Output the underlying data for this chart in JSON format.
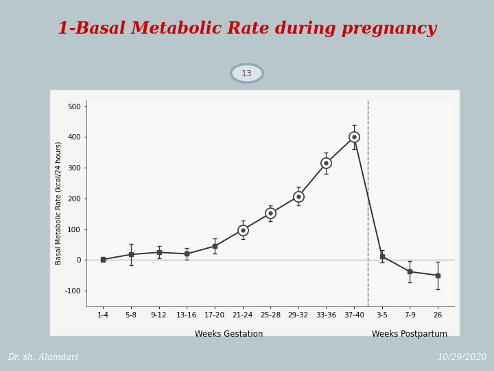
{
  "title": "1-Basal Metabolic Rate during pregnancy",
  "title_color": "#cc0000",
  "slide_bg": "#b8c7cc",
  "inner_bg": "#c8d4d8",
  "white_box_bg": "#f0f0f0",
  "footer_bg": "#7a9ea8",
  "footer_left": "Dr. sh. Alamdari",
  "footer_right": "10/29/2020",
  "page_number": "13",
  "ylabel": "Basal Metabolic Rate (kcal/24 hours)",
  "xlabel_gestation": "Weeks Gestation",
  "xlabel_postpartum": "Weeks Postpartum",
  "x_labels": [
    "1-4",
    "5-8",
    "9-12",
    "13-16",
    "17-20",
    "21-24",
    "25-28",
    "29-32",
    "33-36",
    "37-40",
    "3-5",
    "7-9",
    "26"
  ],
  "x_values": [
    0,
    1,
    2,
    3,
    4,
    5,
    6,
    7,
    8,
    9,
    10,
    11,
    12
  ],
  "y_values": [
    2,
    18,
    25,
    20,
    45,
    98,
    152,
    207,
    315,
    400,
    12,
    -38,
    -50
  ],
  "y_err": [
    8,
    35,
    20,
    18,
    25,
    30,
    25,
    30,
    35,
    40,
    20,
    35,
    45
  ],
  "circle_indices": [
    5,
    6,
    7,
    8,
    9
  ],
  "dashed_line_x": 9.5,
  "ylim": [
    -150,
    520
  ],
  "yticks": [
    -100,
    0,
    100,
    200,
    300,
    400,
    500
  ],
  "line_color": "#333333",
  "marker_color": "#444444",
  "title_fontsize": 17,
  "footer_fontsize": 9,
  "ylabel_fontsize": 7,
  "tick_fontsize": 7.5
}
